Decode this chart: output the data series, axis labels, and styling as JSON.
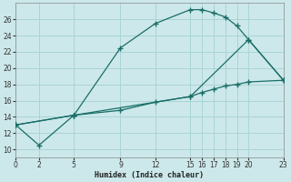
{
  "xlabel": "Humidex (Indice chaleur)",
  "bg_color": "#cce8ea",
  "grid_color": "#aad4d6",
  "line_color": "#1a6e68",
  "xlim": [
    0,
    23
  ],
  "ylim": [
    9,
    28
  ],
  "yticks": [
    10,
    12,
    14,
    16,
    18,
    20,
    22,
    24,
    26
  ],
  "xticks": [
    0,
    2,
    5,
    9,
    12,
    15,
    16,
    17,
    18,
    19,
    20,
    23
  ],
  "line1_x": [
    0,
    2,
    5,
    9,
    12,
    15,
    16,
    17,
    18,
    19,
    20,
    23
  ],
  "line1_y": [
    13,
    10.5,
    14.2,
    22.5,
    25.5,
    27.2,
    27.2,
    26.8,
    26.3,
    25.2,
    23.5,
    18.5
  ],
  "line2_x": [
    0,
    5,
    9,
    12,
    15,
    16,
    17,
    18,
    19,
    20,
    23
  ],
  "line2_y": [
    13,
    14.2,
    14.8,
    15.8,
    16.5,
    17.0,
    17.4,
    17.8,
    18.0,
    18.3,
    18.5
  ],
  "line3_x": [
    0,
    5,
    15,
    20,
    23
  ],
  "line3_y": [
    13,
    14.2,
    16.5,
    23.5,
    18.5
  ]
}
